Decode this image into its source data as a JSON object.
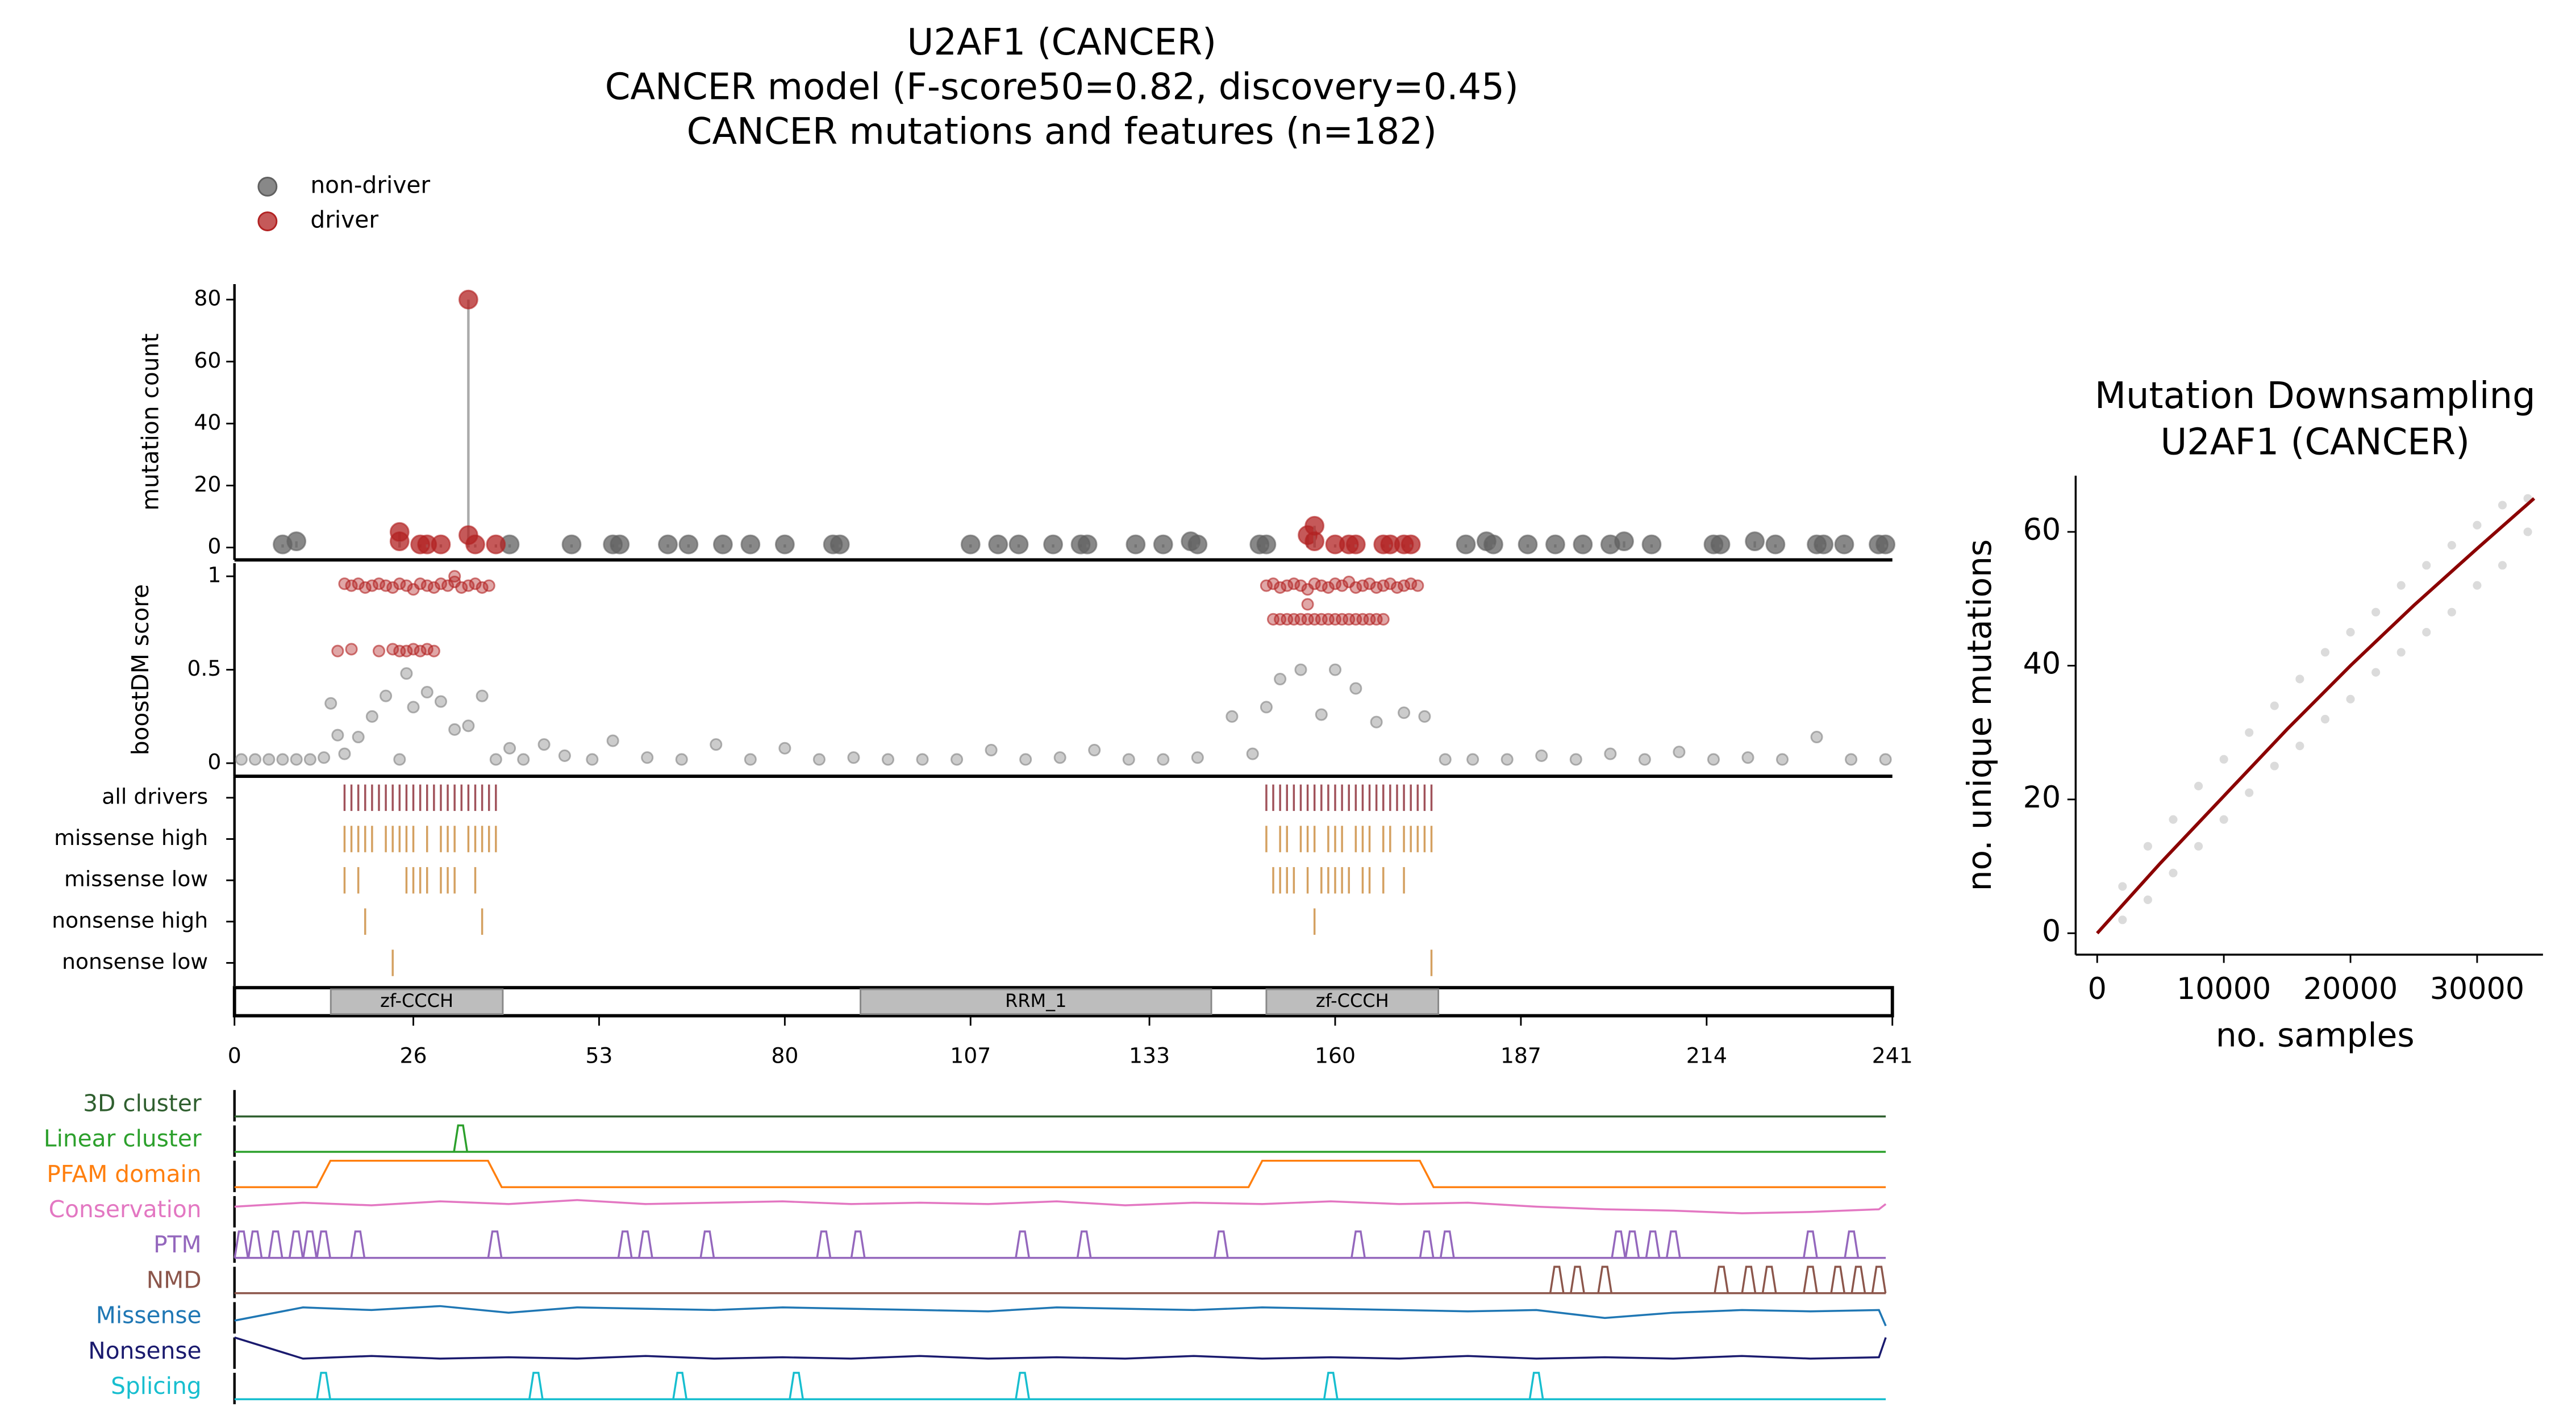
{
  "chart_data": [
    {
      "type": "scatter",
      "title": [
        "U2AF1 (CANCER)",
        "CANCER model (F-score50=0.82, discovery=0.45)",
        "CANCER mutations and features (n=182)"
      ],
      "ylabel": "mutation count",
      "ylim": [
        -4,
        85
      ],
      "yticks": [
        0,
        20,
        40,
        60,
        80
      ],
      "series": [
        {
          "name": "non-driver",
          "color": "#606060",
          "x": [
            7,
            9,
            40,
            49,
            55,
            56,
            63,
            66,
            71,
            75,
            80,
            87,
            88,
            107,
            111,
            114,
            119,
            123,
            124,
            131,
            135,
            139,
            140,
            149,
            150,
            179,
            182,
            183,
            188,
            192,
            196,
            200,
            202,
            206,
            215,
            216,
            221,
            224,
            230,
            231,
            234,
            239,
            240
          ],
          "values": [
            1,
            2,
            1,
            1,
            1,
            1,
            1,
            1,
            1,
            1,
            1,
            1,
            1,
            1,
            1,
            1,
            1,
            1,
            1,
            1,
            1,
            2,
            1,
            1,
            1,
            1,
            2,
            1,
            1,
            1,
            1,
            1,
            2,
            1,
            1,
            1,
            2,
            1,
            1,
            1,
            1,
            1,
            1
          ]
        },
        {
          "name": "driver",
          "color": "#b22222",
          "x": [
            24,
            24,
            27,
            28,
            30,
            34,
            34,
            35,
            38,
            156,
            157,
            157,
            160,
            162,
            163,
            167,
            168,
            170,
            171
          ],
          "values": [
            5,
            2,
            1,
            1,
            1,
            80,
            4,
            1,
            1,
            4,
            7,
            2,
            1,
            1,
            1,
            1,
            1,
            1,
            1
          ]
        }
      ]
    },
    {
      "type": "scatter",
      "ylabel": "boostDM score",
      "ylim": [
        -0.07,
        1.07
      ],
      "yticks": [
        0,
        0.5,
        1
      ],
      "series": [
        {
          "color": "#808080",
          "x": [
            1,
            3,
            5,
            7,
            9,
            11,
            13,
            14,
            15,
            16,
            18,
            20,
            22,
            24,
            25,
            26,
            28,
            30,
            32,
            34,
            36,
            38,
            40,
            42,
            45,
            48,
            52,
            55,
            60,
            65,
            70,
            75,
            80,
            85,
            90,
            95,
            100,
            105,
            110,
            115,
            120,
            125,
            130,
            135,
            140,
            145,
            148,
            150,
            152,
            155,
            158,
            160,
            163,
            166,
            170,
            173,
            176,
            180,
            185,
            190,
            195,
            200,
            205,
            210,
            215,
            220,
            225,
            230,
            235,
            240
          ],
          "values": [
            0.02,
            0.02,
            0.02,
            0.02,
            0.02,
            0.02,
            0.03,
            0.32,
            0.15,
            0.05,
            0.14,
            0.25,
            0.36,
            0.02,
            0.48,
            0.3,
            0.38,
            0.33,
            0.18,
            0.2,
            0.36,
            0.02,
            0.08,
            0.02,
            0.1,
            0.04,
            0.02,
            0.12,
            0.03,
            0.02,
            0.1,
            0.02,
            0.08,
            0.02,
            0.03,
            0.02,
            0.02,
            0.02,
            0.07,
            0.02,
            0.03,
            0.07,
            0.02,
            0.02,
            0.03,
            0.25,
            0.05,
            0.3,
            0.45,
            0.5,
            0.26,
            0.5,
            0.4,
            0.22,
            0.27,
            0.25,
            0.02,
            0.02,
            0.02,
            0.04,
            0.02,
            0.05,
            0.02,
            0.06,
            0.02,
            0.03,
            0.02,
            0.14,
            0.02,
            0.02
          ]
        },
        {
          "color": "#b22222",
          "x": [
            16,
            17,
            18,
            19,
            20,
            21,
            22,
            23,
            24,
            25,
            26,
            27,
            28,
            29,
            30,
            31,
            32,
            33,
            34,
            35,
            36,
            37,
            15,
            17,
            21,
            23,
            24,
            25,
            26,
            27,
            28,
            29,
            150,
            151,
            152,
            153,
            154,
            155,
            156,
            157,
            158,
            159,
            160,
            161,
            162,
            163,
            164,
            165,
            166,
            167,
            168,
            169,
            170,
            171,
            172,
            151,
            152,
            153,
            154,
            155,
            156,
            157,
            158,
            159,
            160,
            161,
            162,
            163,
            164,
            165,
            166,
            167,
            32,
            156
          ],
          "values": [
            0.96,
            0.95,
            0.96,
            0.94,
            0.95,
            0.96,
            0.95,
            0.94,
            0.96,
            0.95,
            0.93,
            0.96,
            0.95,
            0.94,
            0.96,
            0.95,
            0.97,
            0.94,
            0.95,
            0.96,
            0.94,
            0.95,
            0.6,
            0.61,
            0.6,
            0.61,
            0.6,
            0.6,
            0.61,
            0.6,
            0.61,
            0.6,
            0.95,
            0.96,
            0.94,
            0.95,
            0.96,
            0.95,
            0.93,
            0.96,
            0.95,
            0.94,
            0.96,
            0.95,
            0.97,
            0.94,
            0.95,
            0.96,
            0.94,
            0.95,
            0.96,
            0.94,
            0.95,
            0.96,
            0.95,
            0.77,
            0.77,
            0.77,
            0.77,
            0.77,
            0.77,
            0.77,
            0.77,
            0.77,
            0.77,
            0.77,
            0.77,
            0.77,
            0.77,
            0.77,
            0.77,
            0.77,
            1.0,
            0.85
          ]
        }
      ]
    },
    {
      "type": "strip",
      "rows": [
        {
          "name": "all drivers",
          "color": "#a0525a",
          "positions": [
            16,
            17,
            18,
            19,
            20,
            21,
            22,
            23,
            24,
            25,
            26,
            27,
            28,
            29,
            30,
            31,
            32,
            33,
            34,
            35,
            36,
            37,
            38,
            150,
            151,
            152,
            153,
            154,
            155,
            156,
            157,
            158,
            159,
            160,
            161,
            162,
            163,
            164,
            165,
            166,
            167,
            168,
            169,
            170,
            171,
            172,
            173,
            174
          ]
        },
        {
          "name": "missense high",
          "color": "#d4a060",
          "positions": [
            16,
            17,
            18,
            19,
            20,
            22,
            23,
            24,
            25,
            26,
            28,
            30,
            31,
            32,
            34,
            35,
            36,
            37,
            38,
            150,
            152,
            153,
            155,
            156,
            157,
            159,
            160,
            161,
            163,
            164,
            165,
            167,
            168,
            170,
            171,
            172,
            173,
            174
          ]
        },
        {
          "name": "missense low",
          "color": "#d4a060",
          "positions": [
            16,
            18,
            25,
            26,
            27,
            28,
            30,
            31,
            32,
            35,
            151,
            152,
            153,
            154,
            156,
            158,
            159,
            160,
            161,
            162,
            164,
            165,
            167,
            170
          ]
        },
        {
          "name": "nonsense high",
          "color": "#d4a060",
          "positions": [
            19,
            36,
            157
          ]
        },
        {
          "name": "nonsense low",
          "color": "#d4a060",
          "positions": [
            23,
            174
          ]
        }
      ]
    },
    {
      "type": "domains",
      "xlim": [
        0,
        241
      ],
      "xticks": [
        0,
        26,
        53,
        80,
        107,
        133,
        160,
        187,
        214,
        241
      ],
      "domains": [
        {
          "label": "zf-CCCH",
          "start": 14,
          "end": 39
        },
        {
          "label": "RRM_1",
          "start": 91,
          "end": 142
        },
        {
          "label": "zf-CCCH",
          "start": 150,
          "end": 175
        }
      ]
    },
    {
      "type": "tracks",
      "series": [
        {
          "name": "3D cluster",
          "color": "#2f5f2f",
          "x": [
            0,
            241
          ],
          "values": [
            0,
            0
          ]
        },
        {
          "name": "Linear cluster",
          "color": "#2ca02c",
          "peaks": [
            33
          ]
        },
        {
          "name": "PFAM domain",
          "color": "#ff7f0e",
          "x": [
            0,
            12,
            14,
            37,
            39,
            148,
            150,
            173,
            175,
            241
          ],
          "values": [
            0,
            0,
            1,
            1,
            0,
            0,
            1,
            1,
            0,
            0
          ]
        },
        {
          "name": "Conservation",
          "color": "#e377c2",
          "x": [
            0,
            10,
            20,
            30,
            40,
            50,
            60,
            70,
            80,
            90,
            100,
            110,
            120,
            130,
            140,
            150,
            160,
            170,
            180,
            190,
            200,
            210,
            220,
            230,
            240,
            241
          ],
          "values": [
            0.6,
            0.75,
            0.65,
            0.8,
            0.7,
            0.85,
            0.7,
            0.75,
            0.8,
            0.7,
            0.75,
            0.7,
            0.8,
            0.65,
            0.75,
            0.7,
            0.8,
            0.7,
            0.75,
            0.6,
            0.5,
            0.45,
            0.35,
            0.4,
            0.5,
            0.7
          ]
        },
        {
          "name": "PTM",
          "color": "#9467bd",
          "peaks": [
            1,
            3,
            6,
            9,
            11,
            13,
            18,
            38,
            57,
            60,
            69,
            86,
            91,
            115,
            124,
            144,
            164,
            174,
            177,
            202,
            204,
            207,
            210,
            230,
            236
          ]
        },
        {
          "name": "NMD",
          "color": "#8c564b",
          "peaks": [
            193,
            196,
            200,
            217,
            221,
            224,
            230,
            234,
            237,
            240
          ]
        },
        {
          "name": "Missense",
          "color": "#1f77b4",
          "x": [
            0,
            10,
            20,
            30,
            40,
            50,
            60,
            70,
            80,
            90,
            100,
            110,
            120,
            130,
            140,
            150,
            160,
            170,
            180,
            190,
            200,
            210,
            220,
            230,
            240,
            241
          ],
          "values": [
            0.3,
            0.8,
            0.7,
            0.85,
            0.6,
            0.8,
            0.75,
            0.7,
            0.8,
            0.75,
            0.7,
            0.65,
            0.8,
            0.75,
            0.7,
            0.8,
            0.75,
            0.7,
            0.65,
            0.7,
            0.4,
            0.6,
            0.7,
            0.65,
            0.7,
            0.1
          ]
        },
        {
          "name": "Nonsense",
          "color": "#1a1a6e",
          "x": [
            0,
            10,
            20,
            30,
            40,
            50,
            60,
            70,
            80,
            90,
            100,
            110,
            120,
            130,
            140,
            150,
            160,
            170,
            180,
            190,
            200,
            210,
            220,
            230,
            240,
            241
          ],
          "values": [
            1,
            0.2,
            0.3,
            0.2,
            0.25,
            0.2,
            0.3,
            0.2,
            0.25,
            0.2,
            0.3,
            0.2,
            0.25,
            0.2,
            0.3,
            0.2,
            0.25,
            0.2,
            0.3,
            0.2,
            0.25,
            0.2,
            0.3,
            0.2,
            0.25,
            1
          ]
        },
        {
          "name": "Splicing",
          "color": "#17becf",
          "peaks": [
            13,
            44,
            65,
            82,
            115,
            160,
            190
          ]
        }
      ]
    },
    {
      "type": "line",
      "title": [
        "Mutation Downsampling",
        "U2AF1 (CANCER)"
      ],
      "xlabel": "no. samples",
      "ylabel": "no. unique mutations",
      "xlim": [
        -1700,
        35200
      ],
      "ylim": [
        -3.2,
        68.4
      ],
      "xticks": [
        0,
        10000,
        20000,
        30000
      ],
      "yticks": [
        0,
        20,
        40,
        60
      ],
      "series": [
        {
          "type": "scatter",
          "color": "#999999",
          "x": [
            2000,
            2000,
            4000,
            4000,
            6000,
            6000,
            8000,
            8000,
            10000,
            10000,
            12000,
            12000,
            14000,
            14000,
            16000,
            16000,
            18000,
            18000,
            20000,
            20000,
            22000,
            22000,
            24000,
            24000,
            26000,
            26000,
            28000,
            28000,
            30000,
            30000,
            32000,
            32000,
            34000,
            34000
          ],
          "values": [
            2,
            7,
            5,
            13,
            9,
            17,
            13,
            22,
            17,
            26,
            21,
            30,
            25,
            34,
            28,
            38,
            32,
            42,
            35,
            45,
            39,
            48,
            42,
            52,
            45,
            55,
            48,
            58,
            52,
            61,
            55,
            64,
            60,
            65
          ]
        },
        {
          "type": "line",
          "color": "#8b0000",
          "x": [
            0,
            5000,
            10000,
            15000,
            20000,
            25000,
            30000,
            34500
          ],
          "values": [
            0,
            10.5,
            20.5,
            30.5,
            40,
            49,
            57.5,
            65
          ]
        }
      ]
    }
  ]
}
